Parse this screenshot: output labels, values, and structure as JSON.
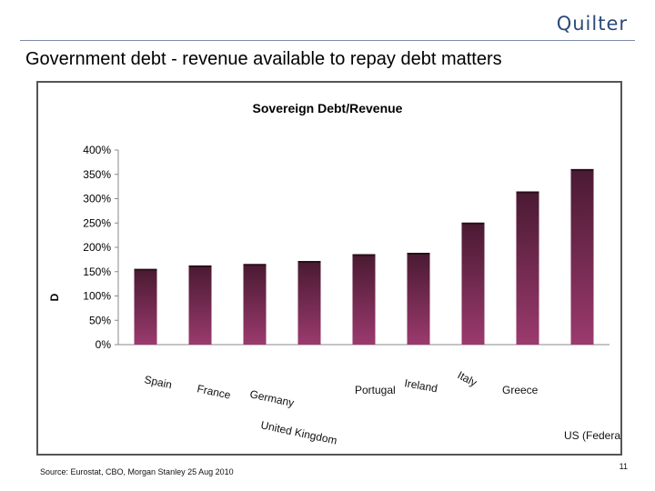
{
  "header": {
    "logo_text": "Quilter"
  },
  "slide": {
    "title": "Government debt - revenue available to repay debt matters",
    "source": "Source: Eurostat, CBO, Morgan Stanley 25 Aug 2010",
    "page_number": "11"
  },
  "colors": {
    "bar_top": "#4a1a32",
    "bar_bottom": "#9b3a6e",
    "rule": "#7a8aa8",
    "logo": "#2b4a7a"
  },
  "chart_data": {
    "type": "bar",
    "title": "Sovereign Debt/Revenue",
    "ylabel": "D",
    "categories": [
      "Spain",
      "France",
      "Germany",
      "United Kingdom",
      "Portugal",
      "Ireland",
      "Italy",
      "Greece",
      "US (Federal) G"
    ],
    "values": [
      154,
      161,
      164,
      170,
      184,
      187,
      249,
      313,
      359
    ],
    "ylim": [
      0,
      400
    ],
    "yticks": [
      "0%",
      "50%",
      "100%",
      "150%",
      "200%",
      "250%",
      "300%",
      "350%",
      "400%"
    ],
    "grid": false,
    "legend": "none"
  }
}
